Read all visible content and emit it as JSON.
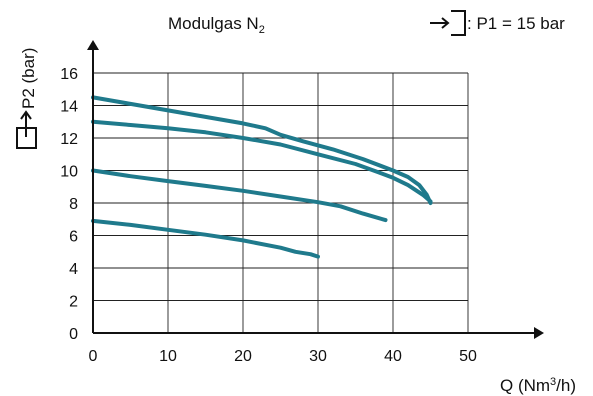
{
  "chart_data": {
    "type": "line",
    "title": "Modulgas N",
    "title_subscript": "2",
    "inlet_label": ": P1 = 15 bar",
    "xlabel": "Q (Nm",
    "xlabel_sup": "3",
    "xlabel_end": "/h)",
    "ylabel": "P2 (bar)",
    "xlim": [
      0,
      60
    ],
    "ylim": [
      0,
      18
    ],
    "x_ticks": [
      "0",
      "10",
      "20",
      "30",
      "40",
      "50"
    ],
    "y_ticks": [
      "0",
      "2",
      "4",
      "6",
      "8",
      "10",
      "12",
      "14",
      "16"
    ],
    "grid": true,
    "colors": {
      "curve": "#1f7a8c",
      "axis": "#111111"
    },
    "series": [
      {
        "x": [
          0,
          5,
          10,
          15,
          20,
          23,
          25,
          28,
          32,
          36,
          40,
          42,
          43.5,
          44.5,
          45
        ],
        "y": [
          14.5,
          14.1,
          13.7,
          13.3,
          12.9,
          12.6,
          12.2,
          11.8,
          11.3,
          10.7,
          10.0,
          9.6,
          9.1,
          8.5,
          8.0
        ]
      },
      {
        "x": [
          0,
          5,
          10,
          15,
          20,
          25,
          30,
          35,
          38,
          40,
          42,
          44,
          45
        ],
        "y": [
          13.0,
          12.8,
          12.6,
          12.35,
          12.0,
          11.6,
          11.0,
          10.4,
          9.9,
          9.55,
          9.1,
          8.5,
          8.1
        ]
      },
      {
        "x": [
          0,
          5,
          10,
          15,
          20,
          25,
          30,
          33,
          36,
          39
        ],
        "y": [
          10.0,
          9.65,
          9.35,
          9.05,
          8.75,
          8.4,
          8.05,
          7.8,
          7.35,
          6.95
        ]
      },
      {
        "x": [
          0,
          5,
          10,
          15,
          20,
          25,
          27,
          29,
          30
        ],
        "y": [
          6.9,
          6.65,
          6.35,
          6.05,
          5.7,
          5.25,
          5.0,
          4.85,
          4.7
        ]
      }
    ]
  }
}
